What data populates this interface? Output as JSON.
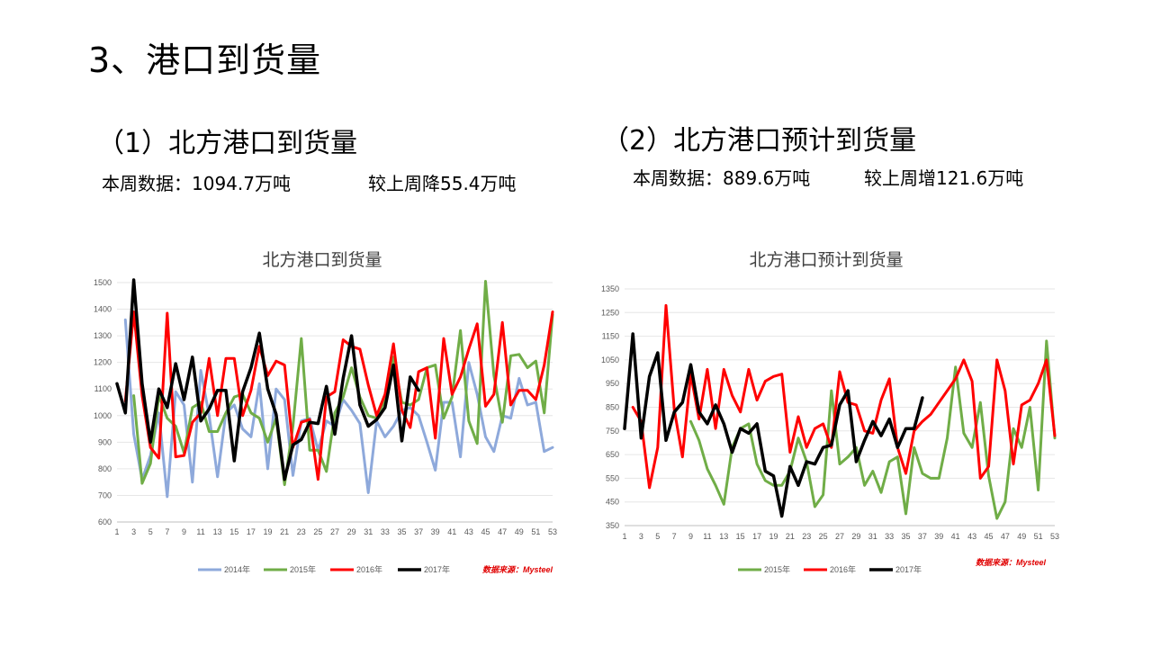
{
  "page": {
    "title": "3、港口到货量"
  },
  "left_panel": {
    "heading": "（1）北方港口到货量",
    "week_data": "本周数据：1094.7万吨",
    "change": "较上周降55.4万吨"
  },
  "right_panel": {
    "heading": "（2）北方港口预计到货量",
    "week_data": "本周数据：889.6万吨",
    "change": "较上周增121.6万吨"
  },
  "chart_data": [
    {
      "type": "line",
      "title": "北方港口到货量",
      "xlabel": "",
      "ylabel": "",
      "ylim": [
        600,
        1500
      ],
      "y_ticks": [
        600,
        700,
        800,
        900,
        1000,
        1100,
        1200,
        1300,
        1400,
        1500
      ],
      "x_ticks": [
        "1",
        "3",
        "5",
        "7",
        "9",
        "11",
        "13",
        "15",
        "17",
        "19",
        "21",
        "23",
        "25",
        "27",
        "29",
        "31",
        "33",
        "35",
        "37",
        "39",
        "41",
        "43",
        "45",
        "47",
        "49",
        "51",
        "53"
      ],
      "legend_position": "bottom",
      "source": "数据来源：Mysteel",
      "series": [
        {
          "name": "2014年",
          "color": "#8EA9DB",
          "x": [
            2,
            3,
            4,
            5,
            6,
            7,
            8,
            9,
            10,
            11,
            12,
            13,
            14,
            15,
            16,
            17,
            18,
            19,
            20,
            21,
            22,
            23,
            24,
            25,
            26,
            27,
            28,
            29,
            30,
            31,
            32,
            33,
            34,
            35,
            36,
            37,
            38,
            39,
            40,
            41,
            42,
            43,
            44,
            45,
            46,
            47,
            48,
            49,
            50,
            51,
            52,
            53
          ],
          "values": [
            1360,
            930,
            760,
            850,
            1010,
            695,
            1090,
            1040,
            750,
            1170,
            1000,
            770,
            1010,
            1040,
            950,
            920,
            1120,
            800,
            1100,
            1060,
            775,
            980,
            990,
            870,
            980,
            960,
            1060,
            1020,
            970,
            710,
            980,
            920,
            960,
            1020,
            1030,
            1000,
            900,
            795,
            1050,
            1050,
            845,
            1200,
            1080,
            920,
            865,
            1000,
            990,
            1140,
            1040,
            1050,
            865,
            880
          ]
        },
        {
          "name": "2015年",
          "color": "#70AD47",
          "x": [
            3,
            4,
            5,
            6,
            7,
            8,
            9,
            10,
            11,
            12,
            13,
            14,
            15,
            16,
            17,
            18,
            19,
            20,
            21,
            22,
            23,
            24,
            25,
            26,
            27,
            28,
            29,
            30,
            31,
            32,
            33,
            34,
            35,
            36,
            37,
            38,
            39,
            40,
            41,
            42,
            43,
            44,
            45,
            46,
            47,
            48,
            49,
            50,
            51,
            52,
            53
          ],
          "values": [
            1075,
            745,
            820,
            1075,
            990,
            960,
            860,
            1030,
            1050,
            940,
            940,
            1010,
            1070,
            1080,
            1010,
            990,
            900,
            990,
            740,
            960,
            1290,
            870,
            870,
            790,
            1010,
            1070,
            1180,
            1070,
            1000,
            990,
            1060,
            1220,
            1050,
            1040,
            1060,
            1180,
            1190,
            990,
            1070,
            1320,
            980,
            895,
            1505,
            1150,
            975,
            1225,
            1230,
            1180,
            1205,
            1010,
            1380
          ]
        },
        {
          "name": "2016年",
          "color": "#FF0000",
          "x": [
            2,
            3,
            4,
            5,
            6,
            7,
            8,
            9,
            10,
            11,
            12,
            13,
            14,
            15,
            16,
            17,
            18,
            19,
            20,
            21,
            22,
            23,
            24,
            25,
            26,
            27,
            28,
            29,
            30,
            31,
            32,
            33,
            34,
            35,
            36,
            37,
            38,
            39,
            40,
            41,
            42,
            43,
            44,
            45,
            46,
            47,
            48,
            49,
            50,
            51,
            52,
            53
          ],
          "values": [
            1055,
            1390,
            1075,
            880,
            840,
            1385,
            845,
            850,
            975,
            1010,
            1215,
            1000,
            1215,
            1215,
            1000,
            1095,
            1260,
            1150,
            1205,
            1190,
            880,
            975,
            985,
            760,
            1070,
            1090,
            1285,
            1260,
            1250,
            1115,
            1000,
            1080,
            1270,
            1020,
            955,
            1165,
            1180,
            915,
            1290,
            1080,
            1145,
            1250,
            1345,
            1035,
            1080,
            1350,
            1040,
            1095,
            1095,
            1060,
            1190,
            1390
          ]
        },
        {
          "name": "2017年",
          "color": "#000000",
          "x": [
            1,
            2,
            3,
            4,
            5,
            6,
            7,
            8,
            9,
            10,
            11,
            12,
            13,
            14,
            15,
            16,
            17,
            18,
            19,
            20,
            21,
            22,
            23,
            24,
            25,
            26,
            27,
            28,
            29,
            30,
            31,
            32,
            33,
            34,
            35,
            36,
            37
          ],
          "values": [
            1120,
            1010,
            1510,
            1120,
            900,
            1100,
            1030,
            1195,
            1060,
            1220,
            980,
            1025,
            1095,
            1095,
            830,
            1090,
            1180,
            1310,
            1100,
            1005,
            760,
            890,
            910,
            975,
            970,
            1110,
            930,
            1140,
            1300,
            1040,
            960,
            985,
            1030,
            1190,
            905,
            1145,
            1095
          ]
        }
      ]
    },
    {
      "type": "line",
      "title": "北方港口预计到货量",
      "xlabel": "",
      "ylabel": "",
      "ylim": [
        350,
        1350
      ],
      "y_ticks": [
        350,
        450,
        550,
        650,
        750,
        850,
        950,
        1050,
        1150,
        1250,
        1350
      ],
      "x_ticks": [
        "1",
        "3",
        "5",
        "7",
        "9",
        "11",
        "13",
        "15",
        "17",
        "19",
        "21",
        "23",
        "25",
        "27",
        "29",
        "31",
        "33",
        "35",
        "37",
        "39",
        "41",
        "43",
        "45",
        "47",
        "49",
        "51",
        "53"
      ],
      "legend_position": "bottom",
      "source": "数据来源：Mysteel",
      "series": [
        {
          "name": "2015年",
          "color": "#70AD47",
          "x": [
            9,
            10,
            11,
            12,
            13,
            14,
            15,
            16,
            17,
            18,
            19,
            20,
            21,
            22,
            23,
            24,
            25,
            26,
            27,
            28,
            29,
            30,
            31,
            32,
            33,
            34,
            35,
            36,
            37,
            38,
            39,
            40,
            41,
            42,
            43,
            44,
            45,
            46,
            47,
            48,
            49,
            50,
            51,
            52,
            53
          ],
          "values": [
            790,
            710,
            590,
            520,
            440,
            680,
            760,
            780,
            610,
            540,
            520,
            520,
            580,
            720,
            620,
            430,
            480,
            920,
            610,
            640,
            680,
            520,
            580,
            490,
            620,
            640,
            400,
            680,
            570,
            550,
            550,
            720,
            1020,
            740,
            680,
            870,
            560,
            380,
            450,
            760,
            680,
            850,
            500,
            1130,
            720
          ]
        },
        {
          "name": "2016年",
          "color": "#FF0000",
          "x": [
            2,
            3,
            4,
            5,
            6,
            7,
            8,
            9,
            10,
            11,
            12,
            13,
            14,
            15,
            16,
            17,
            18,
            19,
            20,
            21,
            22,
            23,
            24,
            25,
            26,
            27,
            28,
            29,
            30,
            31,
            32,
            33,
            34,
            35,
            36,
            37,
            38,
            39,
            40,
            41,
            42,
            43,
            44,
            45,
            46,
            47,
            48,
            49,
            50,
            51,
            52,
            53
          ],
          "values": [
            850,
            790,
            510,
            680,
            1280,
            840,
            640,
            990,
            800,
            1010,
            760,
            1010,
            900,
            830,
            1010,
            880,
            960,
            980,
            990,
            660,
            810,
            680,
            760,
            780,
            680,
            1000,
            870,
            860,
            750,
            740,
            880,
            970,
            680,
            570,
            750,
            790,
            820,
            870,
            920,
            970,
            1050,
            960,
            550,
            600,
            1050,
            920,
            610,
            860,
            880,
            950,
            1050,
            730
          ]
        },
        {
          "name": "2017年",
          "color": "#000000",
          "x": [
            1,
            2,
            3,
            4,
            5,
            6,
            7,
            8,
            9,
            10,
            11,
            12,
            13,
            14,
            15,
            16,
            17,
            18,
            19,
            20,
            21,
            22,
            23,
            24,
            25,
            26,
            27,
            28,
            29,
            30,
            31,
            32,
            33,
            34,
            35,
            36,
            37
          ],
          "values": [
            760,
            1160,
            720,
            980,
            1080,
            710,
            830,
            870,
            1030,
            830,
            780,
            860,
            780,
            660,
            760,
            740,
            780,
            580,
            560,
            390,
            600,
            520,
            620,
            610,
            680,
            690,
            860,
            920,
            620,
            710,
            790,
            730,
            800,
            680,
            760,
            760,
            890
          ]
        }
      ]
    }
  ]
}
